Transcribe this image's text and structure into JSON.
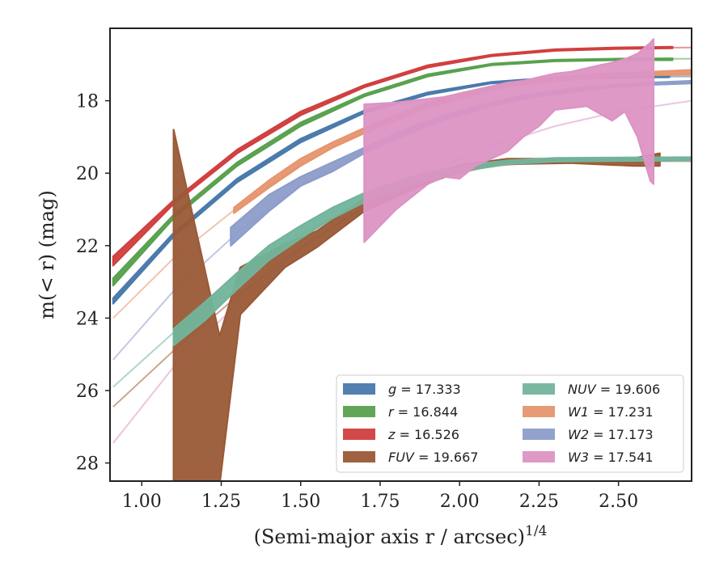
{
  "chart_data": {
    "type": "line",
    "xlabel": "(Semi-major axis r / arcsec)",
    "xlabel_exponent": "1/4",
    "ylabel": "m(< r) (mag)",
    "xlim": [
      0.9,
      2.73
    ],
    "ylim": [
      28.5,
      16.0
    ],
    "x_ticks": [
      1.0,
      1.25,
      1.5,
      1.75,
      2.0,
      2.25,
      2.5
    ],
    "x_tick_labels": [
      "1.00",
      "1.25",
      "1.50",
      "1.75",
      "2.00",
      "2.25",
      "2.50"
    ],
    "y_ticks": [
      18,
      20,
      22,
      24,
      26,
      28
    ],
    "y_tick_labels": [
      "18",
      "20",
      "22",
      "24",
      "26",
      "28"
    ],
    "legend": {
      "position": "lower-right",
      "columns": 2
    },
    "series": [
      {
        "name": "g = 17.333",
        "var": "g",
        "val": "17.333",
        "color": "#4a7aab",
        "extrap": [
          [
            0.91,
            23.55
          ],
          [
            1.1,
            21.7
          ],
          [
            1.3,
            20.2
          ],
          [
            1.5,
            19.1
          ],
          [
            1.7,
            18.3
          ],
          [
            1.9,
            17.8
          ],
          [
            2.1,
            17.5
          ],
          [
            2.3,
            17.38
          ],
          [
            2.5,
            17.34
          ],
          [
            2.73,
            17.33
          ]
        ],
        "band": [
          [
            0.91,
            23.45,
            23.6
          ],
          [
            1.1,
            21.65,
            21.75
          ],
          [
            1.3,
            20.15,
            20.25
          ],
          [
            1.5,
            19.05,
            19.15
          ],
          [
            1.7,
            18.27,
            18.34
          ],
          [
            1.9,
            17.77,
            17.83
          ],
          [
            2.1,
            17.48,
            17.52
          ],
          [
            2.3,
            17.36,
            17.4
          ],
          [
            2.5,
            17.32,
            17.36
          ],
          [
            2.66,
            17.31,
            17.35
          ]
        ]
      },
      {
        "name": "r = 16.844",
        "var": "r",
        "val": "16.844",
        "color": "#59a14f",
        "extrap": [
          [
            0.91,
            23.0
          ],
          [
            1.1,
            21.2
          ],
          [
            1.3,
            19.75
          ],
          [
            1.5,
            18.65
          ],
          [
            1.7,
            17.85
          ],
          [
            1.9,
            17.3
          ],
          [
            2.1,
            17.0
          ],
          [
            2.3,
            16.89
          ],
          [
            2.5,
            16.85
          ],
          [
            2.73,
            16.84
          ]
        ],
        "band": [
          [
            0.91,
            22.9,
            23.1
          ],
          [
            1.1,
            21.15,
            21.25
          ],
          [
            1.3,
            19.7,
            19.8
          ],
          [
            1.5,
            18.6,
            18.7
          ],
          [
            1.7,
            17.82,
            17.88
          ],
          [
            1.9,
            17.27,
            17.33
          ],
          [
            2.1,
            16.98,
            17.02
          ],
          [
            2.3,
            16.87,
            16.91
          ],
          [
            2.5,
            16.84,
            16.88
          ],
          [
            2.67,
            16.83,
            16.88
          ]
        ]
      },
      {
        "name": "z = 16.526",
        "var": "z",
        "val": "16.526",
        "color": "#d13f3f",
        "extrap": [
          [
            0.91,
            22.4
          ],
          [
            1.1,
            20.8
          ],
          [
            1.3,
            19.4
          ],
          [
            1.5,
            18.35
          ],
          [
            1.7,
            17.6
          ],
          [
            1.9,
            17.05
          ],
          [
            2.1,
            16.75
          ],
          [
            2.3,
            16.6
          ],
          [
            2.5,
            16.55
          ],
          [
            2.73,
            16.53
          ]
        ],
        "band": [
          [
            0.91,
            22.3,
            22.55
          ],
          [
            1.1,
            20.75,
            20.85
          ],
          [
            1.3,
            19.35,
            19.45
          ],
          [
            1.5,
            18.3,
            18.4
          ],
          [
            1.7,
            17.57,
            17.63
          ],
          [
            1.9,
            17.02,
            17.08
          ],
          [
            2.1,
            16.73,
            16.77
          ],
          [
            2.3,
            16.58,
            16.62
          ],
          [
            2.5,
            16.53,
            16.57
          ],
          [
            2.67,
            16.51,
            16.55
          ]
        ]
      },
      {
        "name": "FUV = 19.667",
        "var": "FUV",
        "val": "19.667",
        "color": "#9a5a37",
        "extrap": [
          [
            0.91,
            26.45
          ],
          [
            1.1,
            24.9
          ],
          [
            1.3,
            23.4
          ],
          [
            1.5,
            22.05
          ],
          [
            1.7,
            20.95
          ],
          [
            1.9,
            20.2
          ],
          [
            2.1,
            19.8
          ],
          [
            2.3,
            19.68
          ],
          [
            2.5,
            19.67
          ],
          [
            2.73,
            19.67
          ]
        ],
        "band": [
          [
            1.1,
            28.6,
            18.8
          ],
          [
            1.245,
            28.6,
            24.5
          ],
          [
            1.31,
            23.9,
            22.6
          ],
          [
            1.45,
            22.6,
            21.95
          ],
          [
            1.55,
            22.05,
            21.6
          ],
          [
            1.7,
            21.05,
            20.7
          ],
          [
            1.85,
            20.45,
            20.2
          ],
          [
            2.0,
            19.95,
            19.78
          ],
          [
            2.15,
            19.75,
            19.6
          ],
          [
            2.35,
            19.72,
            19.6
          ],
          [
            2.55,
            19.8,
            19.58
          ],
          [
            2.63,
            19.8,
            19.45
          ]
        ]
      },
      {
        "name": "NUV = 19.606",
        "var": "NUV",
        "val": "19.606",
        "color": "#72b49b",
        "extrap": [
          [
            0.91,
            25.9
          ],
          [
            1.1,
            24.4
          ],
          [
            1.3,
            22.95
          ],
          [
            1.5,
            21.7
          ],
          [
            1.7,
            20.75
          ],
          [
            1.9,
            20.1
          ],
          [
            2.1,
            19.75
          ],
          [
            2.3,
            19.63
          ],
          [
            2.5,
            19.61
          ],
          [
            2.73,
            19.61
          ]
        ],
        "band": [
          [
            1.1,
            24.75,
            24.3
          ],
          [
            1.2,
            24.05,
            23.55
          ],
          [
            1.3,
            23.2,
            22.75
          ],
          [
            1.4,
            22.4,
            22.0
          ],
          [
            1.5,
            21.8,
            21.45
          ],
          [
            1.6,
            21.25,
            20.95
          ],
          [
            1.7,
            20.8,
            20.55
          ],
          [
            1.85,
            20.3,
            20.1
          ],
          [
            2.0,
            19.95,
            19.8
          ],
          [
            2.15,
            19.75,
            19.65
          ],
          [
            2.3,
            19.68,
            19.58
          ],
          [
            2.5,
            19.66,
            19.57
          ],
          [
            2.73,
            19.65,
            19.56
          ]
        ]
      },
      {
        "name": "W1 = 17.231",
        "var": "W1",
        "val": "17.231",
        "color": "#e6956f",
        "extrap": [
          [
            0.91,
            24.0
          ],
          [
            1.1,
            22.35
          ],
          [
            1.3,
            20.95
          ],
          [
            1.5,
            19.75
          ],
          [
            1.7,
            18.8
          ],
          [
            1.9,
            18.1
          ],
          [
            2.1,
            17.65
          ],
          [
            2.3,
            17.4
          ],
          [
            2.5,
            17.29
          ],
          [
            2.73,
            17.23
          ]
        ],
        "band": [
          [
            1.29,
            21.1,
            20.95
          ],
          [
            1.4,
            20.4,
            20.2
          ],
          [
            1.5,
            19.8,
            19.6
          ],
          [
            1.6,
            19.3,
            19.15
          ],
          [
            1.7,
            18.9,
            18.75
          ],
          [
            1.8,
            18.55,
            18.4
          ],
          [
            1.9,
            18.2,
            18.05
          ],
          [
            2.0,
            17.95,
            17.8
          ],
          [
            2.1,
            17.7,
            17.6
          ],
          [
            2.2,
            17.55,
            17.45
          ],
          [
            2.3,
            17.45,
            17.35
          ],
          [
            2.4,
            17.38,
            17.28
          ],
          [
            2.5,
            17.33,
            17.23
          ],
          [
            2.6,
            17.3,
            17.2
          ],
          [
            2.73,
            17.28,
            17.15
          ]
        ]
      },
      {
        "name": "W2 = 17.173",
        "var": "W2",
        "val": "17.173",
        "color": "#8c9dc9",
        "extrap": [
          [
            0.91,
            25.15
          ],
          [
            1.1,
            23.25
          ],
          [
            1.3,
            21.65
          ],
          [
            1.5,
            20.35
          ],
          [
            1.7,
            19.35
          ],
          [
            1.9,
            18.6
          ],
          [
            2.1,
            18.1
          ],
          [
            2.3,
            17.78
          ],
          [
            2.5,
            17.58
          ],
          [
            2.73,
            17.48
          ]
        ],
        "band": [
          [
            1.28,
            22.0,
            21.5
          ],
          [
            1.4,
            21.05,
            20.6
          ],
          [
            1.5,
            20.35,
            20.1
          ],
          [
            1.6,
            19.95,
            19.7
          ],
          [
            1.7,
            19.45,
            19.3
          ],
          [
            1.8,
            19.05,
            18.9
          ],
          [
            1.9,
            18.7,
            18.55
          ],
          [
            2.0,
            18.4,
            18.28
          ],
          [
            2.1,
            18.15,
            18.05
          ],
          [
            2.2,
            17.95,
            17.85
          ],
          [
            2.3,
            17.82,
            17.72
          ],
          [
            2.4,
            17.7,
            17.62
          ],
          [
            2.5,
            17.62,
            17.55
          ],
          [
            2.6,
            17.56,
            17.5
          ],
          [
            2.73,
            17.52,
            17.45
          ]
        ]
      },
      {
        "name": "W3 = 17.541",
        "var": "W3",
        "val": "17.541",
        "color": "#dc93c4",
        "extrap": [
          [
            0.91,
            27.45
          ],
          [
            1.1,
            25.35
          ],
          [
            1.3,
            23.6
          ],
          [
            1.5,
            22.1
          ],
          [
            1.7,
            20.9
          ],
          [
            1.9,
            19.95
          ],
          [
            2.1,
            19.25
          ],
          [
            2.3,
            18.7
          ],
          [
            2.5,
            18.3
          ],
          [
            2.73,
            18.0
          ]
        ],
        "band": [
          [
            1.7,
            21.9,
            18.1
          ],
          [
            1.8,
            21.0,
            18.05
          ],
          [
            1.9,
            20.3,
            17.95
          ],
          [
            1.95,
            20.1,
            17.9
          ],
          [
            2.0,
            20.15,
            17.8
          ],
          [
            2.05,
            19.8,
            17.7
          ],
          [
            2.15,
            19.4,
            17.5
          ],
          [
            2.2,
            19.0,
            17.45
          ],
          [
            2.25,
            18.7,
            17.35
          ],
          [
            2.3,
            18.25,
            17.25
          ],
          [
            2.35,
            18.2,
            17.2
          ],
          [
            2.4,
            18.15,
            17.1
          ],
          [
            2.45,
            18.4,
            17.0
          ],
          [
            2.48,
            18.55,
            16.95
          ],
          [
            2.52,
            18.3,
            16.85
          ],
          [
            2.56,
            19.0,
            16.7
          ],
          [
            2.6,
            20.2,
            16.4
          ],
          [
            2.61,
            20.3,
            16.3
          ]
        ]
      }
    ]
  }
}
